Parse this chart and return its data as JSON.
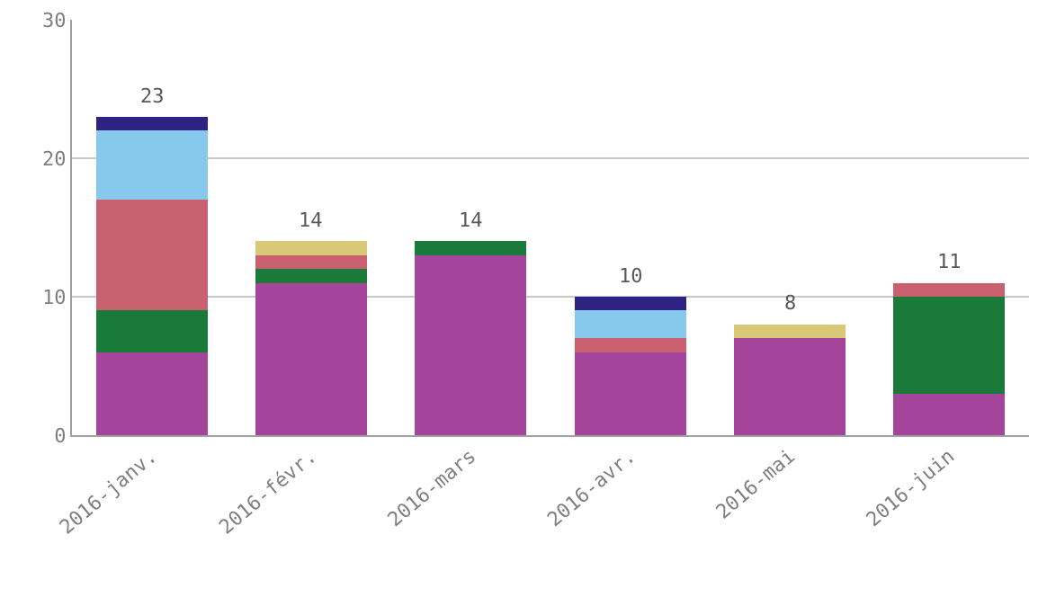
{
  "chart_data": {
    "type": "bar",
    "stacked": true,
    "categories": [
      "2016-janv.",
      "2016-févr.",
      "2016-mars",
      "2016-avr.",
      "2016-mai",
      "2016-juin"
    ],
    "series": [
      {
        "color": "#a5449b",
        "values": [
          6,
          11,
          13,
          6,
          7,
          3
        ]
      },
      {
        "color": "#197a3a",
        "values": [
          3,
          1,
          1,
          null,
          null,
          7
        ]
      },
      {
        "color": "#c9606f",
        "values": [
          8,
          1,
          null,
          1,
          null,
          1
        ]
      },
      {
        "color": "#86c9ec",
        "values": [
          5,
          null,
          null,
          2,
          null,
          null
        ]
      },
      {
        "color": "#2e2382",
        "values": [
          1,
          null,
          null,
          1,
          null,
          null
        ]
      },
      {
        "color": "#d9c878",
        "values": [
          null,
          1,
          null,
          null,
          1,
          null
        ]
      }
    ],
    "totals": [
      "23",
      "14",
      "14",
      "10",
      "8",
      "11"
    ],
    "ylim": [
      0,
      30
    ],
    "yticks": [
      0,
      10,
      20,
      30
    ],
    "grid": "y"
  }
}
